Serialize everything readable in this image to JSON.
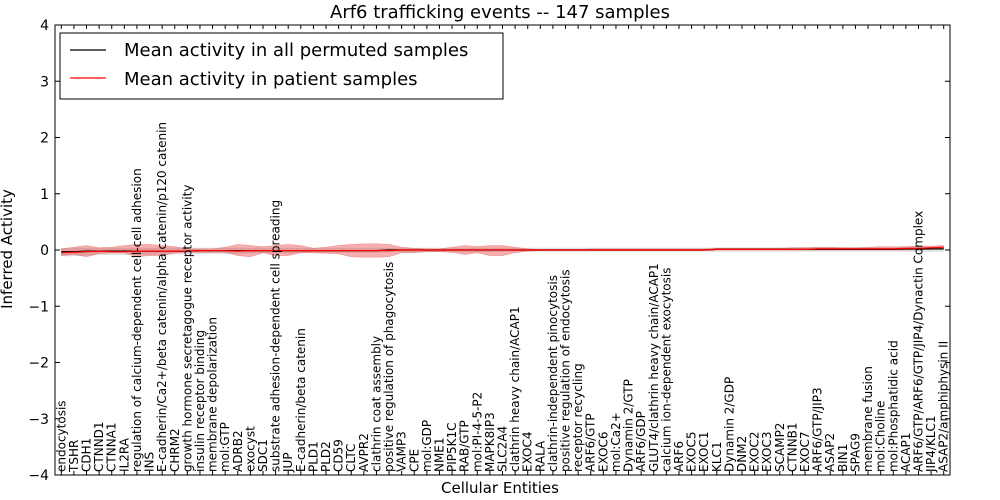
{
  "chart_data": {
    "type": "line",
    "title": "Arf6 trafficking events -- 147 samples",
    "xlabel": "Cellular Entities",
    "ylabel": "Inferred Activity",
    "ylim": [
      -4,
      4
    ],
    "yticks": [
      "−4",
      "−3",
      "−2",
      "−1",
      "0",
      "1",
      "2",
      "3",
      "4"
    ],
    "grid": false,
    "legend_position": "top-left",
    "categories": [
      "endocytosis",
      "TSHR",
      "CDH1",
      "CTNND1",
      "CTNNA1",
      "IL2RA",
      "regulation of calcium-dependent cell-cell adhesion",
      "INS",
      "E-cadherin/Ca2+/beta catenin/alpha catenin/p120 catenin",
      "CHRM2",
      "growth hormone secretagogue receptor activity",
      "insulin receptor binding",
      "membrane depolarization",
      "mol:GTP",
      "ADRB2",
      "exocyst",
      "SDC1",
      "substrate adhesion-dependent cell spreading",
      "JUP",
      "E-cadherin/beta catenin",
      "PLD1",
      "PLD2",
      "CD59",
      "CLTC",
      "AVPR2",
      "clathrin coat assembly",
      "positive regulation of phagocytosis",
      "VAMP3",
      "CPE",
      "mol:GDP",
      "NME1",
      "PIP5K1C",
      "RAB/GTP",
      "mol:PI-4-5-P2",
      "MAPK8IP3",
      "SLC2A4",
      "clathrin heavy chain/ACAP1",
      "EXOC4",
      "RALA",
      "clathrin-independent pinocytosis",
      "positive regulation of endocytosis",
      "receptor recycling",
      "ARF6/GTP",
      "EXOC6",
      "mol:Ca2+",
      "Dynamin 2/GTP",
      "ARF6/GDP",
      "GLUT4/clathrin heavy chain/ACAP1",
      "calcium ion-dependent exocytosis",
      "ARF6",
      "EXOC5",
      "EXOC1",
      "KLC1",
      "Dynamin 2/GDP",
      "DNM2",
      "EXOC2",
      "EXOC3",
      "SCAMP2",
      "CTNNB1",
      "EXOC7",
      "ARF6/GTP/JIP3",
      "ASAP2",
      "BIN1",
      "SPAG9",
      "membrane fusion",
      "mol:Choline",
      "mol:Phosphatidic acid",
      "ACAP1",
      "ARF6/GTP/ARF6/GTP/JIP4/Dynactin Complex",
      "JIP4/KLC1",
      "ASAP2/amphiphysin II"
    ],
    "series": [
      {
        "name": "Mean activity in all permuted samples",
        "color": "#000000",
        "values": [
          -0.03,
          -0.03,
          -0.02,
          -0.02,
          -0.02,
          -0.02,
          -0.02,
          -0.02,
          -0.02,
          -0.02,
          -0.02,
          -0.01,
          -0.01,
          -0.01,
          -0.01,
          -0.01,
          -0.01,
          -0.01,
          -0.01,
          -0.01,
          -0.01,
          -0.01,
          -0.01,
          -0.01,
          -0.01,
          -0.01,
          0.0,
          0.0,
          0.0,
          0.0,
          0.0,
          0.0,
          0.0,
          0.0,
          0.0,
          0.0,
          0.0,
          0.0,
          0.0,
          0.0,
          0.0,
          0.0,
          0.0,
          0.0,
          0.0,
          0.0,
          0.0,
          0.0,
          0.0,
          0.0,
          0.0,
          0.0,
          0.01,
          0.01,
          0.01,
          0.01,
          0.01,
          0.01,
          0.01,
          0.01,
          0.01,
          0.01,
          0.01,
          0.01,
          0.01,
          0.01,
          0.01,
          0.02,
          0.02,
          0.02,
          0.02
        ],
        "band_low": [
          -0.11,
          -0.11,
          -0.1,
          -0.09,
          -0.09,
          -0.09,
          -0.09,
          -0.08,
          -0.08,
          -0.08,
          -0.08,
          -0.07,
          -0.07,
          -0.07,
          -0.07,
          -0.06,
          -0.06,
          -0.06,
          -0.06,
          -0.06,
          -0.05,
          -0.05,
          -0.05,
          -0.05,
          -0.05,
          -0.05,
          -0.04,
          -0.04,
          -0.04,
          -0.04,
          -0.04,
          -0.04,
          -0.04,
          -0.04,
          -0.04,
          -0.03,
          -0.03,
          -0.03,
          -0.03,
          -0.03,
          -0.03,
          -0.03,
          -0.03,
          -0.03,
          -0.03,
          -0.03,
          -0.03,
          -0.03,
          -0.03,
          -0.03,
          -0.03,
          -0.03,
          -0.03,
          -0.03,
          -0.03,
          -0.03,
          -0.03,
          -0.03,
          -0.03,
          -0.03,
          -0.03,
          -0.03,
          -0.03,
          -0.03,
          -0.03,
          -0.03,
          -0.03,
          -0.03,
          -0.03,
          -0.03,
          -0.03
        ],
        "band_high": [
          0.04,
          0.04,
          0.04,
          0.04,
          0.04,
          0.04,
          0.04,
          0.04,
          0.04,
          0.04,
          0.04,
          0.04,
          0.04,
          0.04,
          0.04,
          0.04,
          0.04,
          0.04,
          0.04,
          0.04,
          0.04,
          0.04,
          0.04,
          0.04,
          0.04,
          0.04,
          0.04,
          0.04,
          0.04,
          0.04,
          0.04,
          0.04,
          0.04,
          0.04,
          0.04,
          0.04,
          0.04,
          0.04,
          0.04,
          0.04,
          0.04,
          0.04,
          0.04,
          0.04,
          0.04,
          0.04,
          0.04,
          0.04,
          0.04,
          0.04,
          0.04,
          0.04,
          0.05,
          0.05,
          0.05,
          0.05,
          0.05,
          0.05,
          0.05,
          0.05,
          0.05,
          0.05,
          0.05,
          0.05,
          0.05,
          0.05,
          0.05,
          0.06,
          0.06,
          0.06,
          0.06
        ]
      },
      {
        "name": "Mean activity in patient samples",
        "color": "#ff0000",
        "values": [
          -0.05,
          -0.04,
          -0.03,
          -0.02,
          -0.03,
          -0.03,
          -0.02,
          -0.02,
          -0.02,
          -0.02,
          -0.02,
          -0.01,
          -0.01,
          -0.01,
          -0.02,
          -0.01,
          -0.01,
          -0.01,
          -0.01,
          -0.01,
          -0.01,
          -0.01,
          -0.01,
          -0.01,
          -0.01,
          -0.01,
          -0.01,
          0.0,
          0.0,
          0.0,
          0.0,
          0.0,
          0.0,
          0.0,
          0.0,
          0.0,
          0.0,
          0.0,
          0.0,
          0.0,
          0.0,
          0.0,
          0.0,
          0.0,
          0.0,
          0.0,
          0.0,
          0.0,
          0.0,
          0.0,
          0.0,
          0.0,
          0.01,
          0.01,
          0.01,
          0.01,
          0.01,
          0.01,
          0.01,
          0.01,
          0.02,
          0.02,
          0.02,
          0.02,
          0.02,
          0.02,
          0.02,
          0.03,
          0.03,
          0.04,
          0.05
        ],
        "band_low": [
          -0.1,
          -0.08,
          -0.12,
          -0.06,
          -0.05,
          -0.05,
          -0.12,
          -0.1,
          -0.1,
          -0.05,
          -0.04,
          -0.04,
          -0.04,
          -0.04,
          -0.1,
          -0.12,
          -0.05,
          -0.1,
          -0.1,
          -0.05,
          -0.05,
          -0.06,
          -0.07,
          -0.12,
          -0.13,
          -0.13,
          -0.12,
          -0.05,
          -0.05,
          -0.03,
          -0.03,
          -0.04,
          -0.08,
          -0.05,
          -0.1,
          -0.1,
          -0.05,
          -0.02,
          -0.01,
          -0.01,
          -0.01,
          -0.01,
          -0.01,
          -0.01,
          -0.01,
          -0.01,
          -0.01,
          -0.01,
          -0.01,
          -0.01,
          -0.01,
          -0.01,
          0.0,
          0.0,
          0.0,
          0.0,
          0.0,
          0.0,
          0.0,
          0.0,
          0.0,
          0.0,
          0.0,
          0.0,
          0.0,
          0.0,
          0.0,
          0.0,
          0.0,
          0.01,
          0.02
        ],
        "band_high": [
          0.02,
          0.05,
          0.08,
          0.04,
          0.05,
          0.08,
          0.1,
          0.1,
          0.08,
          0.06,
          0.02,
          0.02,
          0.02,
          0.05,
          0.1,
          0.08,
          0.06,
          0.08,
          0.1,
          0.08,
          0.03,
          0.05,
          0.08,
          0.1,
          0.11,
          0.11,
          0.1,
          0.05,
          0.03,
          0.02,
          0.02,
          0.05,
          0.08,
          0.06,
          0.08,
          0.08,
          0.05,
          0.02,
          0.01,
          0.01,
          0.01,
          0.01,
          0.02,
          0.02,
          0.02,
          0.02,
          0.02,
          0.02,
          0.02,
          0.02,
          0.02,
          0.02,
          0.03,
          0.03,
          0.03,
          0.03,
          0.03,
          0.03,
          0.04,
          0.04,
          0.05,
          0.05,
          0.04,
          0.04,
          0.05,
          0.06,
          0.06,
          0.06,
          0.07,
          0.07,
          0.08
        ]
      }
    ]
  }
}
